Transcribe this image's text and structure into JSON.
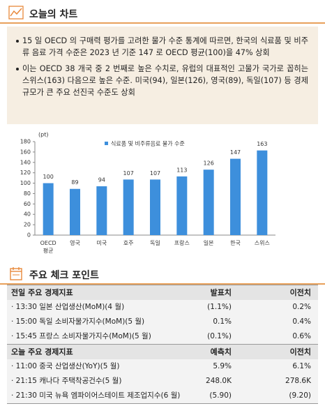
{
  "header": {
    "title": "오늘의 차트"
  },
  "summary": {
    "bullets": [
      "15 일 OECD 의 구매력 평가를 고려한 물가 수준 통계에 따르면, 한국의 식료품 및 비주류 음료 가격 수준은 2023 년 기준 147 로 OECD 평균(100)을 47% 상회",
      "이는 OECD 38 개국 중 2 번째로 높은 수치로, 유럽의 대표적인 고물가 국가로 꼽히는 스위스(163) 다음으로 높은 수준. 미국(94), 일본(126), 영국(89), 독일(107) 등 경제 규모가 큰 주요 선진국 수준도 상회"
    ]
  },
  "chart_data": {
    "type": "bar",
    "y_label": "(pt)",
    "categories": [
      "OECD 평균",
      "영국",
      "미국",
      "호주",
      "독일",
      "프랑스",
      "일본",
      "한국",
      "스위스"
    ],
    "series": [
      {
        "name": "식료품 및 비주류음료 물가 수준",
        "color": "#3d8fdc",
        "values": [
          100,
          89,
          94,
          107,
          107,
          113,
          126,
          147,
          163
        ]
      }
    ],
    "ylim": [
      0,
      180
    ],
    "yticks": [
      0,
      20,
      40,
      60,
      80,
      100,
      120,
      140,
      160,
      180
    ],
    "grid": false,
    "legend": "top"
  },
  "checkpoint": {
    "title": "주요 체크 포인트",
    "tables": [
      {
        "header": [
          "전일 주요 경제지표",
          "발표치",
          "이전치"
        ],
        "rows": [
          [
            "· 13:30 일본 산업생산(MoM)(4 월)",
            "(1.1%)",
            "0.2%"
          ],
          [
            "· 15:00 독일 소비자물가지수(MoM)(5 월)",
            "0.1%",
            "0.4%"
          ],
          [
            "· 15:45 프랑스 소비자물가지수(MoM)(5 월)",
            "(0.1%)",
            "0.6%"
          ]
        ]
      },
      {
        "header": [
          "오늘 주요 경제지표",
          "예측치",
          "이전치"
        ],
        "rows": [
          [
            "· 11:00 중국 산업생산(YoY)(5 월)",
            "5.9%",
            "6.1%"
          ],
          [
            "· 21:15 캐나다 주택착공건수(5 월)",
            "248.0K",
            "278.6K"
          ],
          [
            "· 21:30 미국 뉴욕 엠파이어스테이트 제조업지수(6 월)",
            "(5.90)",
            "(9.20)"
          ]
        ]
      }
    ]
  }
}
